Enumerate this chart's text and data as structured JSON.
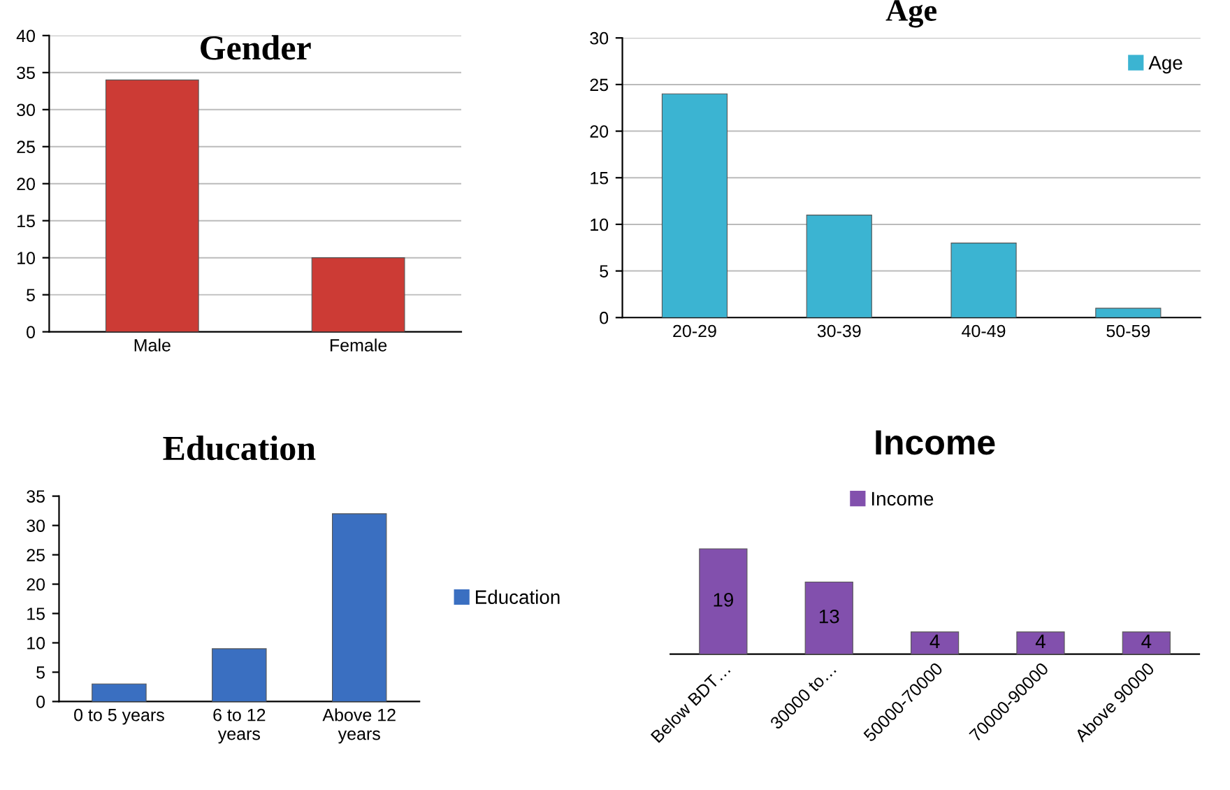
{
  "chart_data": [
    {
      "type": "bar",
      "title": "Gender",
      "categories": [
        "Male",
        "Female"
      ],
      "values": [
        34,
        10
      ],
      "color": "#cc3b35",
      "ylim": [
        0,
        40
      ],
      "yticks": [
        0,
        5,
        10,
        15,
        20,
        25,
        30,
        35,
        40
      ],
      "grid": "y"
    },
    {
      "type": "bar",
      "title": "Age",
      "categories": [
        "20-29",
        "30-39",
        "40-49",
        "50-59"
      ],
      "series": [
        {
          "name": "Age",
          "color": "#3bb4d2",
          "values": [
            24,
            11,
            8,
            1
          ]
        }
      ],
      "ylim": [
        0,
        30
      ],
      "yticks": [
        0,
        5,
        10,
        15,
        20,
        25,
        30
      ],
      "grid": "y",
      "legend": "top right"
    },
    {
      "type": "bar",
      "title": "Education",
      "categories": [
        "0 to 5 years",
        "6 to 12\nyears",
        "Above 12\nyears"
      ],
      "series": [
        {
          "name": "Education",
          "color": "#3a6fc1",
          "values": [
            3,
            9,
            32
          ]
        }
      ],
      "ylim": [
        0,
        35
      ],
      "yticks": [
        0,
        5,
        10,
        15,
        20,
        25,
        30,
        35
      ],
      "legend": "right"
    },
    {
      "type": "bar",
      "title": "Income",
      "categories": [
        "Below BDT…",
        "30000 to…",
        "50000-70000",
        "70000-90000",
        "Above 90000"
      ],
      "series": [
        {
          "name": "Income",
          "color": "#8250ad",
          "values": [
            19,
            13,
            4,
            4,
            4
          ]
        }
      ],
      "data_labels": true,
      "legend": "top"
    }
  ]
}
